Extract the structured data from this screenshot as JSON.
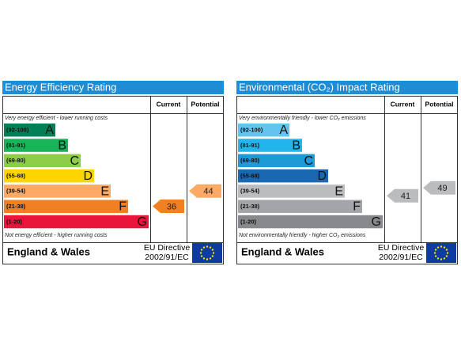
{
  "panels": [
    {
      "title": "Energy Efficiency Rating",
      "headers": [
        "Current",
        "Potential"
      ],
      "top_note": "Very energy efficient - lower running costs",
      "bottom_note": "Not energy efficient - higher running costs",
      "bands": [
        {
          "range": "(92-100)",
          "letter": "A",
          "color": "#008054"
        },
        {
          "range": "(81-91)",
          "letter": "B",
          "color": "#19b459"
        },
        {
          "range": "(69-80)",
          "letter": "C",
          "color": "#8dce46"
        },
        {
          "range": "(55-68)",
          "letter": "D",
          "color": "#ffd500"
        },
        {
          "range": "(39-54)",
          "letter": "E",
          "color": "#fcaa65"
        },
        {
          "range": "(21-38)",
          "letter": "F",
          "color": "#ef8023"
        },
        {
          "range": "(1-20)",
          "letter": "G",
          "color": "#e9153b"
        }
      ],
      "current": 36,
      "potential": 44,
      "footer": {
        "region": "England & Wales",
        "directive": "EU Directive",
        "code": "2002/91/EC"
      }
    },
    {
      "title": "Environmental (CO₂) Impact Rating",
      "headers": [
        "Current",
        "Potential"
      ],
      "top_note": "Very environmentally friendly - lower CO₂ emissions",
      "bottom_note": "Not environmentally friendly - higher CO₂ emissions",
      "bands": [
        {
          "range": "(92-100)",
          "letter": "A",
          "color": "#63c5ef"
        },
        {
          "range": "(81-91)",
          "letter": "B",
          "color": "#22b5ec"
        },
        {
          "range": "(69-80)",
          "letter": "C",
          "color": "#1e9ad6"
        },
        {
          "range": "(55-68)",
          "letter": "D",
          "color": "#1a68b1"
        },
        {
          "range": "(39-54)",
          "letter": "E",
          "color": "#bbbcbe"
        },
        {
          "range": "(21-38)",
          "letter": "F",
          "color": "#a3a5a8"
        },
        {
          "range": "(1-20)",
          "letter": "G",
          "color": "#88898c"
        }
      ],
      "current": 41,
      "potential": 49,
      "footer": {
        "region": "England & Wales",
        "directive": "EU Directive",
        "code": "2002/91/EC"
      }
    }
  ]
}
